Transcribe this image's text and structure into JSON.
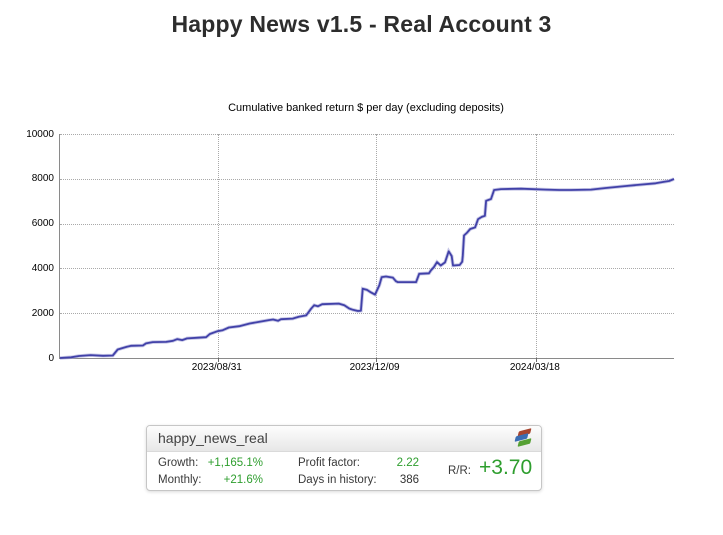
{
  "page": {
    "title": "Happy News v1.5 - Real Account 3"
  },
  "chart_data": {
    "type": "line",
    "title": "Cumulative banked return $ per day (excluding deposits)",
    "xlabel": "",
    "ylabel": "",
    "ylim": [
      0,
      10000
    ],
    "y_ticks": [
      0,
      2000,
      4000,
      6000,
      8000,
      10000
    ],
    "x_ticks": [
      {
        "label": "2023/08/31",
        "pos": 0.257
      },
      {
        "label": "2023/12/09",
        "pos": 0.514
      },
      {
        "label": "2024/03/18",
        "pos": 0.775
      }
    ],
    "grid": true,
    "legend": "none",
    "line_color": "#4141a8",
    "line_halo_color": "#a8a8d8",
    "series": [
      {
        "name": "cumulative banked return ($)",
        "x_unit": "fraction of plotted time range (2023/05 - 2024/06)",
        "points": [
          [
            0.0,
            0
          ],
          [
            0.018,
            30
          ],
          [
            0.031,
            90
          ],
          [
            0.05,
            130
          ],
          [
            0.07,
            100
          ],
          [
            0.086,
            110
          ],
          [
            0.094,
            380
          ],
          [
            0.109,
            500
          ],
          [
            0.116,
            545
          ],
          [
            0.135,
            560
          ],
          [
            0.14,
            650
          ],
          [
            0.151,
            710
          ],
          [
            0.173,
            720
          ],
          [
            0.184,
            770
          ],
          [
            0.191,
            845
          ],
          [
            0.199,
            800
          ],
          [
            0.207,
            875
          ],
          [
            0.225,
            905
          ],
          [
            0.238,
            930
          ],
          [
            0.244,
            1070
          ],
          [
            0.256,
            1190
          ],
          [
            0.265,
            1240
          ],
          [
            0.275,
            1360
          ],
          [
            0.292,
            1420
          ],
          [
            0.309,
            1540
          ],
          [
            0.324,
            1610
          ],
          [
            0.34,
            1690
          ],
          [
            0.347,
            1720
          ],
          [
            0.355,
            1660
          ],
          [
            0.36,
            1730
          ],
          [
            0.379,
            1760
          ],
          [
            0.389,
            1840
          ],
          [
            0.401,
            1900
          ],
          [
            0.404,
            2020
          ],
          [
            0.409,
            2200
          ],
          [
            0.414,
            2355
          ],
          [
            0.42,
            2310
          ],
          [
            0.427,
            2400
          ],
          [
            0.454,
            2430
          ],
          [
            0.463,
            2355
          ],
          [
            0.471,
            2210
          ],
          [
            0.477,
            2150
          ],
          [
            0.485,
            2100
          ],
          [
            0.49,
            2110
          ],
          [
            0.493,
            3095
          ],
          [
            0.5,
            3040
          ],
          [
            0.505,
            2950
          ],
          [
            0.513,
            2830
          ],
          [
            0.52,
            3240
          ],
          [
            0.524,
            3610
          ],
          [
            0.531,
            3640
          ],
          [
            0.542,
            3590
          ],
          [
            0.547,
            3430
          ],
          [
            0.55,
            3390
          ],
          [
            0.58,
            3390
          ],
          [
            0.585,
            3760
          ],
          [
            0.601,
            3780
          ],
          [
            0.604,
            3910
          ],
          [
            0.609,
            4060
          ],
          [
            0.614,
            4280
          ],
          [
            0.62,
            4130
          ],
          [
            0.627,
            4270
          ],
          [
            0.633,
            4765
          ],
          [
            0.638,
            4550
          ],
          [
            0.64,
            4130
          ],
          [
            0.651,
            4150
          ],
          [
            0.655,
            4300
          ],
          [
            0.656,
            4570
          ],
          [
            0.658,
            5470
          ],
          [
            0.663,
            5600
          ],
          [
            0.668,
            5760
          ],
          [
            0.676,
            5830
          ],
          [
            0.681,
            6200
          ],
          [
            0.687,
            6300
          ],
          [
            0.692,
            6350
          ],
          [
            0.694,
            7020
          ],
          [
            0.702,
            7100
          ],
          [
            0.707,
            7500
          ],
          [
            0.718,
            7540
          ],
          [
            0.751,
            7560
          ],
          [
            0.791,
            7520
          ],
          [
            0.813,
            7500
          ],
          [
            0.832,
            7500
          ],
          [
            0.865,
            7520
          ],
          [
            0.889,
            7590
          ],
          [
            0.922,
            7680
          ],
          [
            0.946,
            7740
          ],
          [
            0.97,
            7800
          ],
          [
            0.983,
            7860
          ],
          [
            0.992,
            7900
          ],
          [
            1.0,
            7990
          ]
        ]
      }
    ]
  },
  "stats_card": {
    "title": "happy_news_real",
    "logo_icon": "myfxbook-logo",
    "colors": {
      "positive": "#2e9e2e",
      "neutral": "#333333"
    },
    "metrics": [
      {
        "label": "Growth:",
        "value": "+1,165.1%"
      },
      {
        "label": "Monthly:",
        "value": "+21.6%"
      },
      {
        "label": "Profit factor:",
        "value": "2.22"
      },
      {
        "label": "Days in history:",
        "value": "386"
      },
      {
        "label": "R/R:",
        "value": "+3.70"
      }
    ]
  }
}
